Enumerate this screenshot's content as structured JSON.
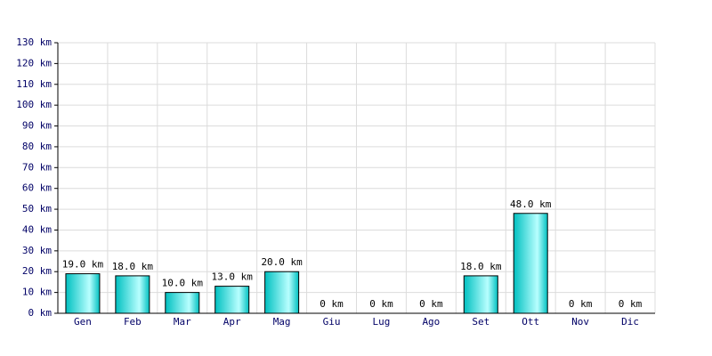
{
  "chart_data": {
    "type": "bar",
    "categories": [
      "Gen",
      "Feb",
      "Mar",
      "Apr",
      "Mag",
      "Giu",
      "Lug",
      "Ago",
      "Set",
      "Ott",
      "Nov",
      "Dic"
    ],
    "values": [
      19,
      18,
      10,
      13,
      20,
      0,
      0,
      0,
      18,
      48,
      0,
      0
    ],
    "value_labels": [
      "19.0 km",
      "18.0 km",
      "10.0 km",
      "13.0 km",
      "20.0 km",
      "0 km",
      "0 km",
      "0 km",
      "18.0 km",
      "48.0 km",
      "0 km",
      "0 km"
    ],
    "color": "#00c0c0",
    "ylim": [
      0,
      130
    ],
    "yticks": [
      {
        "value": 0,
        "label": "0 km"
      },
      {
        "value": 10,
        "label": "10 km"
      },
      {
        "value": 20,
        "label": "20 km"
      },
      {
        "value": 30,
        "label": "30 km"
      },
      {
        "value": 40,
        "label": "40 km"
      },
      {
        "value": 50,
        "label": "50 km"
      },
      {
        "value": 60,
        "label": "60 km"
      },
      {
        "value": 70,
        "label": "70 km"
      },
      {
        "value": 80,
        "label": "80 km"
      },
      {
        "value": 90,
        "label": "90 km"
      },
      {
        "value": 100,
        "label": "100 km"
      },
      {
        "value": 110,
        "label": "110 km"
      },
      {
        "value": 120,
        "label": "120 km"
      },
      {
        "value": 130,
        "label": "130 km"
      }
    ],
    "grid": true
  }
}
